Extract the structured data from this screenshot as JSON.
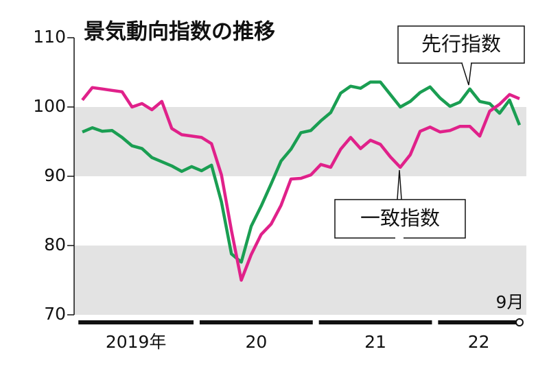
{
  "chart_data": {
    "type": "line",
    "title": "景気動向指数の推移",
    "categories": [
      null,
      null,
      null,
      null,
      null,
      null,
      null,
      null,
      null,
      null,
      null,
      null,
      null,
      null,
      null,
      null,
      null,
      null,
      null,
      null,
      null,
      null,
      null,
      null,
      null,
      null,
      null,
      null,
      null,
      null,
      null,
      null,
      null,
      null,
      null,
      null,
      null,
      null,
      null,
      null,
      null,
      null,
      null,
      null,
      "9月"
    ],
    "x_groups": [
      "2019年",
      "20",
      "21",
      "22"
    ],
    "series": [
      {
        "name": "先行指数",
        "color": "#1a9e52",
        "values": [
          96.4,
          97.0,
          96.5,
          96.6,
          95.6,
          94.4,
          94.0,
          92.7,
          92.1,
          91.5,
          90.7,
          91.4,
          90.8,
          91.6,
          86.3,
          78.8,
          77.6,
          82.8,
          85.7,
          88.9,
          92.2,
          93.9,
          96.3,
          96.6,
          98.0,
          99.2,
          102.0,
          103.0,
          102.7,
          103.6,
          103.6,
          101.8,
          100.0,
          100.8,
          102.1,
          102.9,
          101.3,
          100.1,
          100.7,
          102.6,
          100.8,
          100.5,
          99.1,
          101.0,
          97.4
        ]
      },
      {
        "name": "一致指数",
        "color": "#e0218a",
        "values": [
          101.0,
          102.8,
          102.6,
          102.4,
          102.2,
          100.0,
          100.5,
          99.6,
          100.8,
          96.9,
          96.0,
          95.8,
          95.6,
          94.7,
          90.2,
          82.2,
          75.0,
          78.7,
          81.6,
          83.1,
          85.8,
          89.6,
          89.7,
          90.2,
          91.7,
          91.3,
          93.9,
          95.6,
          94.0,
          95.2,
          94.6,
          92.8,
          91.3,
          93.1,
          96.5,
          97.1,
          96.4,
          96.6,
          97.2,
          97.2,
          95.8,
          99.4,
          100.4,
          101.8,
          101.2
        ]
      }
    ],
    "ylim": [
      70,
      110
    ],
    "yticks": [
      70,
      80,
      90,
      100,
      110
    ],
    "shaded_bands": true
  }
}
